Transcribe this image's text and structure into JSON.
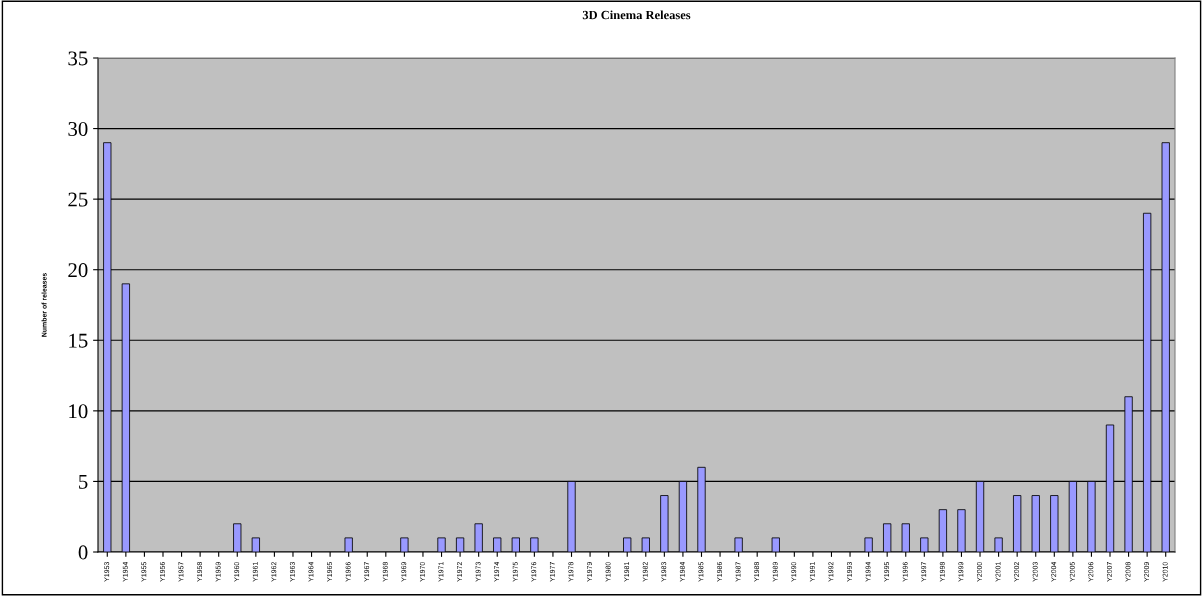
{
  "chart_data": {
    "type": "bar",
    "title": "3D Cinema Releases",
    "ylabel": "Number of releases",
    "categories": [
      "Y1953",
      "Y1954",
      "Y1955",
      "Y1956",
      "Y1957",
      "Y1958",
      "Y1959",
      "Y1960",
      "Y1961",
      "Y1962",
      "Y1963",
      "Y1964",
      "Y1965",
      "Y1966",
      "Y1967",
      "Y1968",
      "Y1969",
      "Y1970",
      "Y1971",
      "Y1972",
      "Y1973",
      "Y1974",
      "Y1975",
      "Y1976",
      "Y1977",
      "Y1978",
      "Y1979",
      "Y1980",
      "Y1981",
      "Y1982",
      "Y1983",
      "Y1984",
      "Y1985",
      "Y1986",
      "Y1987",
      "Y1988",
      "Y1989",
      "Y1990",
      "Y1991",
      "Y1992",
      "Y1993",
      "Y1994",
      "Y1995",
      "Y1996",
      "Y1997",
      "Y1998",
      "Y1999",
      "Y2000",
      "Y2001",
      "Y2002",
      "Y2003",
      "Y2004",
      "Y2005",
      "Y2006",
      "Y2007",
      "Y2008",
      "Y2009",
      "Y2010"
    ],
    "values": [
      29,
      19,
      0,
      0,
      0,
      0,
      0,
      2,
      1,
      0,
      0,
      0,
      0,
      1,
      0,
      0,
      1,
      0,
      1,
      1,
      2,
      1,
      1,
      1,
      0,
      5,
      0,
      0,
      1,
      1,
      4,
      5,
      6,
      0,
      1,
      0,
      1,
      0,
      0,
      0,
      0,
      1,
      2,
      2,
      1,
      3,
      3,
      5,
      1,
      4,
      4,
      4,
      5,
      5,
      9,
      11,
      24,
      29
    ],
    "color": "#9999ff",
    "ylim": [
      0,
      35
    ],
    "yticks": [
      0,
      5,
      10,
      15,
      20,
      25,
      30,
      35
    ],
    "grid": "y",
    "legend": false
  }
}
